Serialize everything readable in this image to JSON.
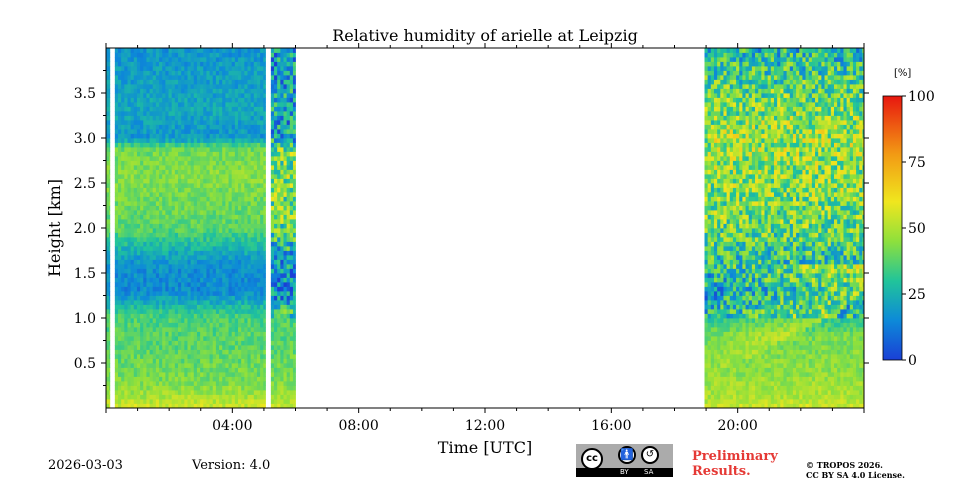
{
  "chart_data": {
    "type": "heatmap",
    "title": "Relative humidity of arielle at Leipzig",
    "xlabel": "Time [UTC]",
    "ylabel": "Height [km]",
    "xlim_hours": [
      0,
      24
    ],
    "ylim_km": [
      0,
      4.0
    ],
    "x_ticks": [
      {
        "hour": 4,
        "label": "04:00"
      },
      {
        "hour": 8,
        "label": "08:00"
      },
      {
        "hour": 12,
        "label": "12:00"
      },
      {
        "hour": 16,
        "label": "16:00"
      },
      {
        "hour": 20,
        "label": "20:00"
      }
    ],
    "y_ticks": [
      {
        "km": 0.5,
        "label": "0.5"
      },
      {
        "km": 1.0,
        "label": "1.0"
      },
      {
        "km": 1.5,
        "label": "1.5"
      },
      {
        "km": 2.0,
        "label": "2.0"
      },
      {
        "km": 2.5,
        "label": "2.5"
      },
      {
        "km": 3.0,
        "label": "3.0"
      },
      {
        "km": 3.5,
        "label": "3.5"
      }
    ],
    "colorbar": {
      "unit": "[%]",
      "range": [
        0,
        100
      ],
      "ticks": [
        {
          "value": 0,
          "label": "0"
        },
        {
          "value": 25,
          "label": "25"
        },
        {
          "value": 50,
          "label": "50"
        },
        {
          "value": 75,
          "label": "75"
        },
        {
          "value": 100,
          "label": "100"
        }
      ],
      "stops": [
        {
          "value": 0,
          "color": "#1a3fd6"
        },
        {
          "value": 15,
          "color": "#0d8ad8"
        },
        {
          "value": 30,
          "color": "#21c49a"
        },
        {
          "value": 45,
          "color": "#8ee03c"
        },
        {
          "value": 60,
          "color": "#f0e61e"
        },
        {
          "value": 78,
          "color": "#f29a14"
        },
        {
          "value": 100,
          "color": "#e8170f"
        }
      ]
    },
    "data_periods": [
      {
        "start": 0.0,
        "end": 0.12
      },
      {
        "start": 0.28,
        "end": 5.05
      },
      {
        "start": 5.22,
        "end": 6.0
      },
      {
        "start": 18.95,
        "end": 24.0
      }
    ],
    "profiles": [
      {
        "segment": "night",
        "levels": [
          {
            "km": 0.0,
            "rh": 55
          },
          {
            "km": 0.1,
            "rh": 50
          },
          {
            "km": 0.3,
            "rh": 42
          },
          {
            "km": 0.7,
            "rh": 38
          },
          {
            "km": 1.0,
            "rh": 36
          },
          {
            "km": 1.15,
            "rh": 26
          },
          {
            "km": 1.3,
            "rh": 15
          },
          {
            "km": 1.6,
            "rh": 17
          },
          {
            "km": 1.8,
            "rh": 27
          },
          {
            "km": 2.0,
            "rh": 38
          },
          {
            "km": 2.6,
            "rh": 44
          },
          {
            "km": 2.9,
            "rh": 40
          },
          {
            "km": 3.0,
            "rh": 18
          },
          {
            "km": 3.3,
            "rh": 22
          },
          {
            "km": 4.0,
            "rh": 18
          }
        ]
      },
      {
        "segment": "evening",
        "levels": [
          {
            "km": 0.0,
            "rh": 55
          },
          {
            "km": 0.1,
            "rh": 50
          },
          {
            "km": 0.4,
            "rh": 45
          },
          {
            "km": 0.8,
            "rh": 42
          },
          {
            "km": 1.0,
            "rh": 30
          },
          {
            "km": 1.3,
            "rh": 20
          },
          {
            "km": 1.6,
            "rh": 30
          },
          {
            "km": 2.0,
            "rh": 40
          },
          {
            "km": 2.6,
            "rh": 45
          },
          {
            "km": 3.0,
            "rh": 48
          },
          {
            "km": 3.5,
            "rh": 40
          },
          {
            "km": 4.0,
            "rh": 26
          }
        ]
      }
    ]
  },
  "footer": {
    "date": "2026-03-03",
    "version": "Version: 4.0",
    "preliminary": "Preliminary Results.",
    "copyright_line1": "© TROPOS 2026.",
    "copyright_line2": "CC BY SA 4.0 License.",
    "license_badge": {
      "cc": "cc",
      "by": "BY",
      "sa": "SA"
    }
  }
}
